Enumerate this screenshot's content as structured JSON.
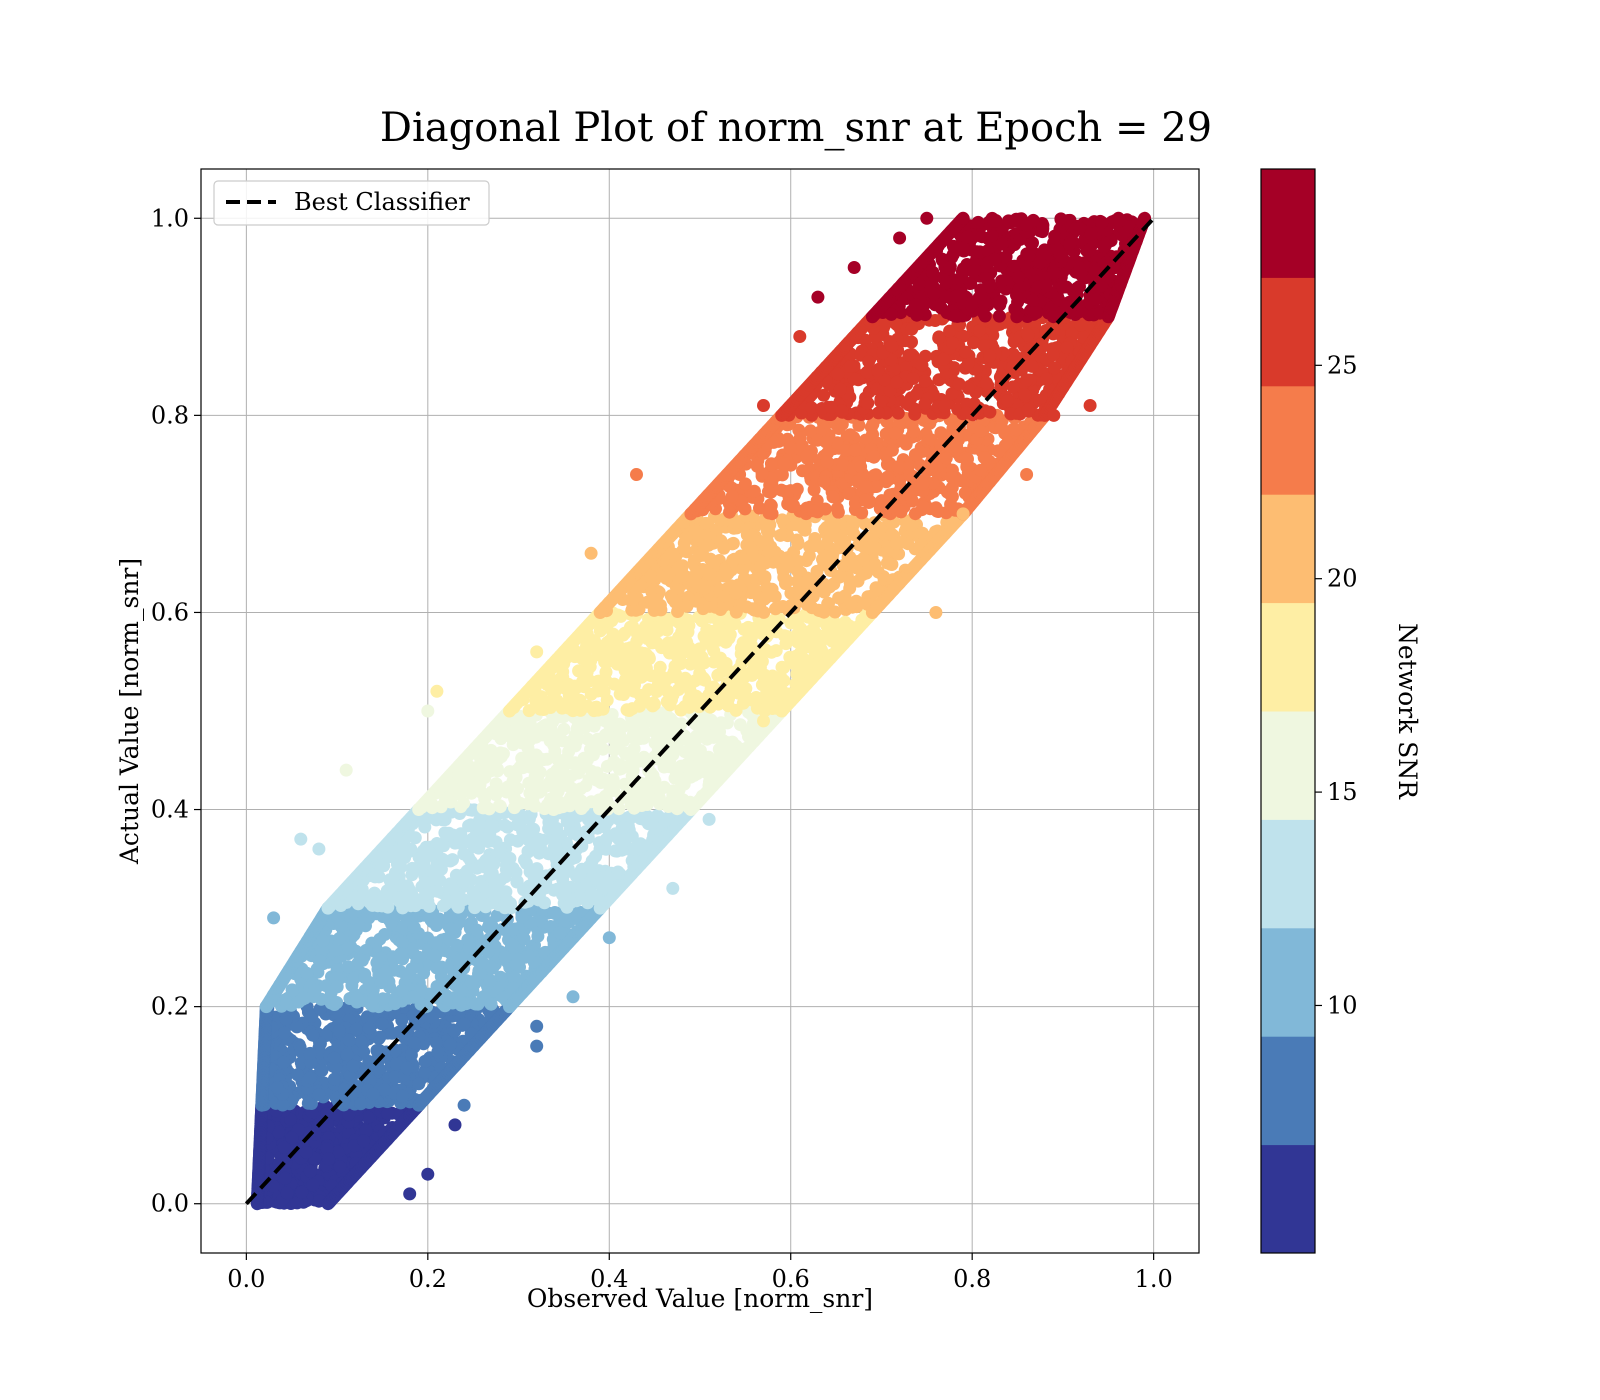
{
  "chart_data": {
    "type": "scatter",
    "title": "Diagonal Plot of norm_snr at Epoch = 29",
    "xlabel": "Observed Value [norm_snr]",
    "ylabel": "Actual Value [norm_snr]",
    "xlim": [
      -0.05,
      1.05
    ],
    "ylim": [
      -0.05,
      1.05
    ],
    "x_ticks": [
      "0.0",
      "0.2",
      "0.4",
      "0.6",
      "0.8",
      "1.0"
    ],
    "y_ticks": [
      "0.0",
      "0.2",
      "0.4",
      "0.6",
      "0.8",
      "1.0"
    ],
    "x_tick_values": [
      0.0,
      0.2,
      0.4,
      0.6,
      0.8,
      1.0
    ],
    "y_tick_values": [
      0.0,
      0.2,
      0.4,
      0.6,
      0.8,
      1.0
    ],
    "grid": true,
    "legend": {
      "placement": "upper-left",
      "entries": [
        {
          "label": "Best Classifier",
          "style": "dashed",
          "color": "#000000"
        }
      ]
    },
    "reference_line": {
      "name": "Best Classifier",
      "x": [
        0.0,
        1.0
      ],
      "y": [
        0.0,
        1.0
      ]
    },
    "colorbar": {
      "label": "Network SNR",
      "range": [
        4.2,
        29.6
      ],
      "ticks": [
        "10",
        "15",
        "20",
        "25"
      ],
      "tick_values": [
        10,
        15,
        20,
        25
      ],
      "colors": [
        "#313695",
        "#4a7bb7",
        "#81b8d8",
        "#bfe2ec",
        "#eff7e0",
        "#feeea4",
        "#fdbd72",
        "#f57c4b",
        "#d93a2b",
        "#a50026"
      ]
    },
    "bands": [
      {
        "y_range": [
          0.0,
          0.1
        ],
        "color": "#313695",
        "x_min_range": [
          0.012,
          0.017
        ],
        "x_max_range": [
          0.09,
          0.19
        ]
      },
      {
        "y_range": [
          0.1,
          0.2
        ],
        "color": "#4a7bb7",
        "x_min_range": [
          0.017,
          0.022
        ],
        "x_max_range": [
          0.19,
          0.29
        ]
      },
      {
        "y_range": [
          0.2,
          0.3
        ],
        "color": "#81b8d8",
        "x_min_range": [
          0.022,
          0.09
        ],
        "x_max_range": [
          0.29,
          0.39
        ]
      },
      {
        "y_range": [
          0.3,
          0.4
        ],
        "color": "#bfe2ec",
        "x_min_range": [
          0.09,
          0.19
        ],
        "x_max_range": [
          0.39,
          0.49
        ]
      },
      {
        "y_range": [
          0.4,
          0.5
        ],
        "color": "#eff7e0",
        "x_min_range": [
          0.19,
          0.29
        ],
        "x_max_range": [
          0.49,
          0.59
        ]
      },
      {
        "y_range": [
          0.5,
          0.6
        ],
        "color": "#feeea4",
        "x_min_range": [
          0.29,
          0.39
        ],
        "x_max_range": [
          0.59,
          0.69
        ]
      },
      {
        "y_range": [
          0.6,
          0.7
        ],
        "color": "#fdbd72",
        "x_min_range": [
          0.39,
          0.49
        ],
        "x_max_range": [
          0.69,
          0.79
        ]
      },
      {
        "y_range": [
          0.7,
          0.8
        ],
        "color": "#f57c4b",
        "x_min_range": [
          0.49,
          0.59
        ],
        "x_max_range": [
          0.79,
          0.88
        ]
      },
      {
        "y_range": [
          0.8,
          0.9
        ],
        "color": "#d93a2b",
        "x_min_range": [
          0.59,
          0.69
        ],
        "x_max_range": [
          0.88,
          0.95
        ]
      },
      {
        "y_range": [
          0.9,
          1.0
        ],
        "color": "#a50026",
        "x_min_range": [
          0.69,
          0.79
        ],
        "x_max_range": [
          0.95,
          0.99
        ]
      }
    ],
    "outliers": [
      {
        "x": 0.03,
        "y": 0.29,
        "color": "#81b8d8"
      },
      {
        "x": 0.06,
        "y": 0.37,
        "color": "#bfe2ec"
      },
      {
        "x": 0.08,
        "y": 0.36,
        "color": "#bfe2ec"
      },
      {
        "x": 0.11,
        "y": 0.44,
        "color": "#eff7e0"
      },
      {
        "x": 0.2,
        "y": 0.5,
        "color": "#eff7e0"
      },
      {
        "x": 0.21,
        "y": 0.52,
        "color": "#feeea4"
      },
      {
        "x": 0.32,
        "y": 0.56,
        "color": "#feeea4"
      },
      {
        "x": 0.38,
        "y": 0.66,
        "color": "#fdbd72"
      },
      {
        "x": 0.43,
        "y": 0.74,
        "color": "#f57c4b"
      },
      {
        "x": 0.57,
        "y": 0.81,
        "color": "#d93a2b"
      },
      {
        "x": 0.61,
        "y": 0.88,
        "color": "#d93a2b"
      },
      {
        "x": 0.63,
        "y": 0.92,
        "color": "#a50026"
      },
      {
        "x": 0.67,
        "y": 0.95,
        "color": "#a50026"
      },
      {
        "x": 0.72,
        "y": 0.98,
        "color": "#a50026"
      },
      {
        "x": 0.75,
        "y": 1.0,
        "color": "#a50026"
      },
      {
        "x": 0.2,
        "y": 0.03,
        "color": "#313695"
      },
      {
        "x": 0.18,
        "y": 0.01,
        "color": "#313695"
      },
      {
        "x": 0.23,
        "y": 0.08,
        "color": "#313695"
      },
      {
        "x": 0.24,
        "y": 0.1,
        "color": "#4a7bb7"
      },
      {
        "x": 0.32,
        "y": 0.16,
        "color": "#4a7bb7"
      },
      {
        "x": 0.32,
        "y": 0.18,
        "color": "#4a7bb7"
      },
      {
        "x": 0.36,
        "y": 0.21,
        "color": "#81b8d8"
      },
      {
        "x": 0.4,
        "y": 0.27,
        "color": "#81b8d8"
      },
      {
        "x": 0.47,
        "y": 0.32,
        "color": "#bfe2ec"
      },
      {
        "x": 0.51,
        "y": 0.39,
        "color": "#bfe2ec"
      },
      {
        "x": 0.57,
        "y": 0.49,
        "color": "#feeea4"
      },
      {
        "x": 0.66,
        "y": 0.59,
        "color": "#feeea4"
      },
      {
        "x": 0.76,
        "y": 0.6,
        "color": "#fdbd72"
      },
      {
        "x": 0.79,
        "y": 0.7,
        "color": "#fdbd72"
      },
      {
        "x": 0.86,
        "y": 0.74,
        "color": "#f57c4b"
      },
      {
        "x": 0.89,
        "y": 0.8,
        "color": "#d93a2b"
      },
      {
        "x": 0.93,
        "y": 0.81,
        "color": "#d93a2b"
      }
    ]
  }
}
